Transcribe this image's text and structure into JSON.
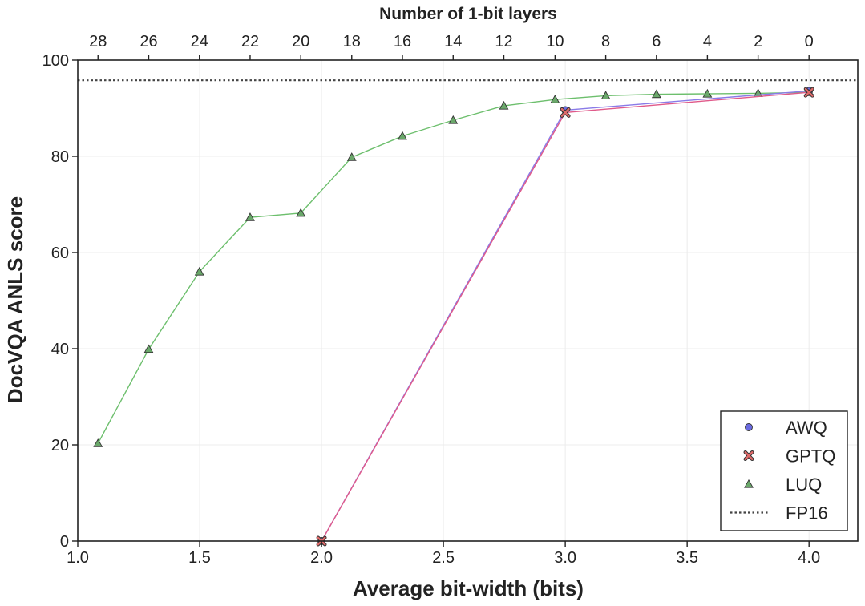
{
  "chart_data": {
    "type": "line",
    "xlabel": "Average bit-width (bits)",
    "ylabel": "DocVQA ANLS score",
    "top_xlabel": "Number of 1-bit layers",
    "xlim": [
      1.0,
      4.2
    ],
    "ylim": [
      0,
      100
    ],
    "x_ticks": [
      "1.0",
      "1.5",
      "2.0",
      "2.5",
      "3.0",
      "3.5",
      "4.0"
    ],
    "y_ticks": [
      "0",
      "20",
      "40",
      "60",
      "80",
      "100"
    ],
    "top_x_ticks": [
      {
        "x": 1.083,
        "label": "28"
      },
      {
        "x": 1.291,
        "label": "26"
      },
      {
        "x": 1.499,
        "label": "24"
      },
      {
        "x": 1.707,
        "label": "22"
      },
      {
        "x": 1.915,
        "label": "20"
      },
      {
        "x": 2.124,
        "label": "18"
      },
      {
        "x": 2.332,
        "label": "16"
      },
      {
        "x": 2.54,
        "label": "14"
      },
      {
        "x": 2.748,
        "label": "12"
      },
      {
        "x": 2.958,
        "label": "10"
      },
      {
        "x": 3.166,
        "label": "8"
      },
      {
        "x": 3.374,
        "label": "6"
      },
      {
        "x": 3.583,
        "label": "4"
      },
      {
        "x": 3.791,
        "label": "2"
      },
      {
        "x": 4.0,
        "label": "0"
      }
    ],
    "grid": true,
    "legend_position": "bottom-right",
    "series": [
      {
        "name": "AWQ",
        "marker": "circle",
        "color": "#6a6ae0",
        "line_color": "#8a7be8",
        "points": [
          [
            2.0,
            0.0
          ],
          [
            3.0,
            89.6
          ],
          [
            4.0,
            93.6
          ]
        ]
      },
      {
        "name": "GPTQ",
        "marker": "x",
        "color": "#e06a6a",
        "line_color": "#e05a8a",
        "points": [
          [
            2.0,
            0.0
          ],
          [
            3.0,
            89.1
          ],
          [
            4.0,
            93.3
          ]
        ]
      },
      {
        "name": "LUQ",
        "marker": "triangle",
        "color": "#6aa86a",
        "line_color": "#6dbf6d",
        "points": [
          [
            1.083,
            20.3
          ],
          [
            1.291,
            39.9
          ],
          [
            1.499,
            56.0
          ],
          [
            1.707,
            67.3
          ],
          [
            1.915,
            68.2
          ],
          [
            2.124,
            79.8
          ],
          [
            2.332,
            84.2
          ],
          [
            2.54,
            87.5
          ],
          [
            2.748,
            90.5
          ],
          [
            2.958,
            91.8
          ],
          [
            3.166,
            92.6
          ],
          [
            3.374,
            92.9
          ],
          [
            3.583,
            93.0
          ],
          [
            3.791,
            93.1
          ],
          [
            4.0,
            93.3
          ]
        ]
      }
    ],
    "reference_lines": [
      {
        "name": "FP16",
        "y": 95.8,
        "style": "dotted",
        "color": "#444444"
      }
    ]
  }
}
